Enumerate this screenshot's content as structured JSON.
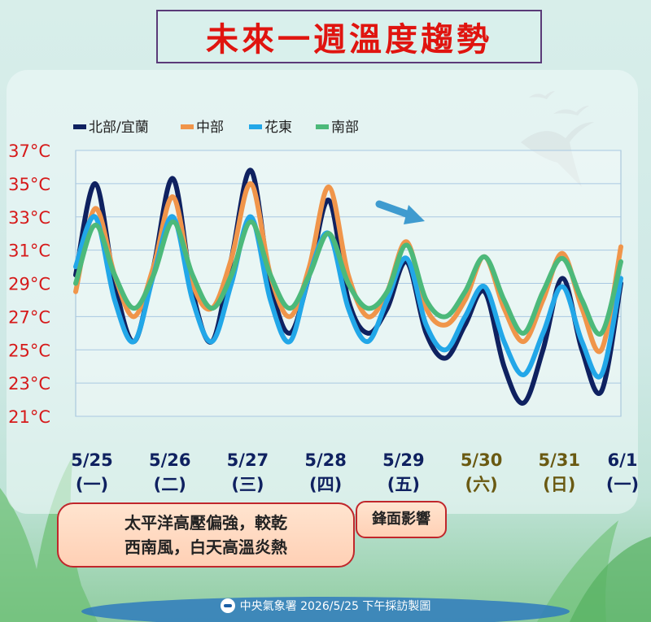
{
  "title": "未來一週溫度趨勢",
  "notes": {
    "note1_line1": "太平洋高壓偏強，較乾",
    "note1_line2": "西南風，白天高溫炎熱",
    "note2": "鋒面影響"
  },
  "footer": "中央氣象署 2026/5/25 下午採訪製圖",
  "colors": {
    "title": "#e0140f",
    "north": "#0f2160",
    "central": "#f0954a",
    "east": "#22a7e8",
    "south": "#4cb97a",
    "weekday": "#0f2160",
    "weekend": "#6a5a12",
    "y_tick": "#d61a1a"
  },
  "chart_data": {
    "type": "line",
    "title": "未來一週溫度趨勢",
    "xlabel": "",
    "ylabel": "",
    "ylim": [
      21,
      37
    ],
    "y_ticks": [
      "21°C",
      "23°C",
      "25°C",
      "27°C",
      "29°C",
      "31°C",
      "33°C",
      "35°C",
      "37°C"
    ],
    "grid": true,
    "legend_position": "top-left",
    "x_ticks": [
      {
        "date": "5/25",
        "day": "(一)",
        "weekend": false
      },
      {
        "date": "5/26",
        "day": "(二)",
        "weekend": false
      },
      {
        "date": "5/27",
        "day": "(三)",
        "weekend": false
      },
      {
        "date": "5/28",
        "day": "(四)",
        "weekend": false
      },
      {
        "date": "5/29",
        "day": "(五)",
        "weekend": false
      },
      {
        "date": "5/30",
        "day": "(六)",
        "weekend": true
      },
      {
        "date": "5/31",
        "day": "(日)",
        "weekend": true
      },
      {
        "date": "6/1",
        "day": "(一)",
        "weekend": false
      }
    ],
    "x_step": 0.25,
    "series": [
      {
        "name": "北部/宜蘭",
        "color": "#0f2160",
        "values": [
          29.5,
          35,
          29,
          25.5,
          30,
          35.3,
          28.5,
          25.5,
          30.5,
          35.8,
          29,
          26,
          29.5,
          34,
          28,
          26,
          27.5,
          30.3,
          26,
          24.5,
          26.5,
          28.5,
          24,
          21.8,
          25,
          29.3,
          25,
          22.5,
          29
        ]
      },
      {
        "name": "中部",
        "color": "#f0954a",
        "values": [
          28.5,
          33.5,
          29.5,
          27,
          30,
          34.2,
          29,
          27.5,
          30.5,
          35,
          29.5,
          27,
          30,
          34.8,
          29.5,
          27,
          28.5,
          31.5,
          27.5,
          26.5,
          28,
          30.6,
          27.5,
          25.5,
          28,
          30.8,
          27.5,
          25,
          31.2
        ]
      },
      {
        "name": "花東",
        "color": "#22a7e8",
        "values": [
          30,
          33,
          28,
          25.5,
          29.5,
          33,
          28,
          25.5,
          29,
          33,
          28,
          25.5,
          29.5,
          32,
          27.5,
          25.5,
          28,
          30.5,
          26.5,
          25,
          27,
          28.8,
          25.5,
          23.5,
          26,
          28.8,
          25.5,
          23.5,
          29.3
        ]
      },
      {
        "name": "南部",
        "color": "#4cb97a",
        "values": [
          29,
          32.5,
          29.5,
          27.5,
          29.5,
          32.7,
          29.5,
          27.5,
          29.5,
          32.7,
          29.5,
          27.5,
          29.5,
          32,
          29,
          27.5,
          28.5,
          31.3,
          28,
          27,
          28.5,
          30.6,
          28,
          26,
          28.5,
          30.5,
          28,
          26,
          30.3
        ]
      }
    ]
  }
}
